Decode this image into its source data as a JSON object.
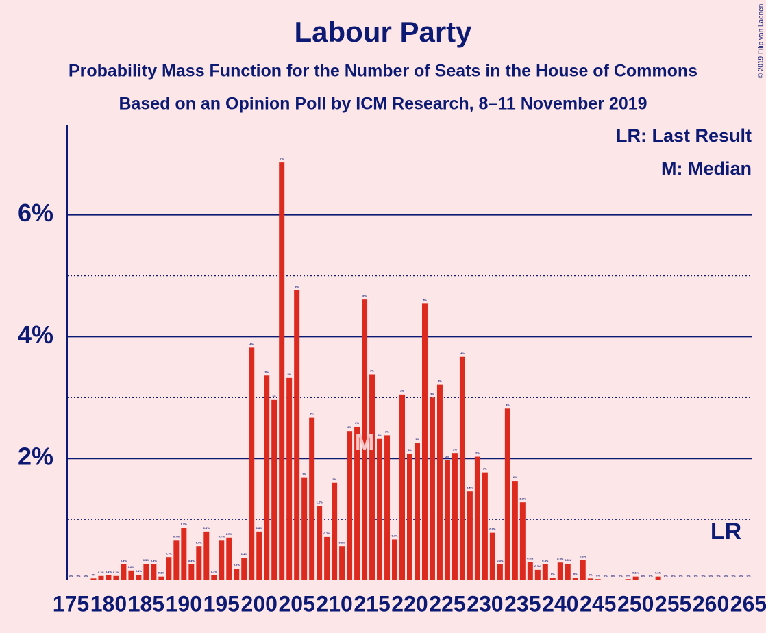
{
  "chart_data": {
    "type": "bar",
    "title": "Labour Party",
    "subtitles": [
      "Probability Mass Function for the Number of Seats in the House of Commons",
      "Based on an Opinion Poll by ICM Research, 8–11 November 2019"
    ],
    "copyright": "© 2019 Filip van Laenen",
    "legend": [
      "LR: Last Result",
      "M: Median"
    ],
    "median_label": "M",
    "median": 214,
    "last_result_label": "LR",
    "last_result": 262,
    "color": "#dd2a1f",
    "x": [
      175,
      176,
      177,
      178,
      179,
      180,
      181,
      182,
      183,
      184,
      185,
      186,
      187,
      188,
      189,
      190,
      191,
      192,
      193,
      194,
      195,
      196,
      197,
      198,
      199,
      200,
      201,
      202,
      203,
      204,
      205,
      206,
      207,
      208,
      209,
      210,
      211,
      212,
      213,
      214,
      215,
      216,
      217,
      218,
      219,
      220,
      221,
      222,
      223,
      224,
      225,
      226,
      227,
      228,
      229,
      230,
      231,
      232,
      233,
      234,
      235,
      236,
      237,
      238,
      239,
      240,
      241,
      242,
      243,
      244,
      245,
      246,
      247,
      248,
      249,
      250,
      251,
      252,
      253,
      254,
      255,
      256,
      257,
      258,
      259,
      260,
      261,
      262,
      263,
      264,
      265
    ],
    "values": [
      0.01,
      0.01,
      0.01,
      0.03,
      0.07,
      0.08,
      0.07,
      0.26,
      0.16,
      0.09,
      0.27,
      0.26,
      0.06,
      0.38,
      0.66,
      0.86,
      0.26,
      0.56,
      0.8,
      0.08,
      0.66,
      0.7,
      0.19,
      0.37,
      3.82,
      0.8,
      3.36,
      2.96,
      6.86,
      3.32,
      4.76,
      1.68,
      2.67,
      1.22,
      0.71,
      1.6,
      0.56,
      2.45,
      2.52,
      4.61,
      3.38,
      2.32,
      2.38,
      0.67,
      3.05,
      2.07,
      2.25,
      4.54,
      3.0,
      3.21,
      1.97,
      2.09,
      3.67,
      1.46,
      2.03,
      1.77,
      0.78,
      0.26,
      2.82,
      1.63,
      1.28,
      0.3,
      0.17,
      0.26,
      0.04,
      0.29,
      0.27,
      0.04,
      0.33,
      0.03,
      0.02,
      0.01,
      0.01,
      0.01,
      0.02,
      0.06,
      0.01,
      0.01,
      0.06,
      0.01,
      0.01,
      0.01,
      0.01,
      0.01,
      0.01,
      0.01,
      0.01,
      0.01,
      0.01,
      0.01,
      0.01
    ],
    "value_labels": [
      "0%",
      "0%",
      "0%",
      "0%",
      "0.1%",
      "0.1%",
      "0.1%",
      "0.3%",
      "0.2%",
      "0.1%",
      "0.3%",
      "0.3%",
      "0.1%",
      "0.4%",
      "0.7%",
      "0.9%",
      "0.3%",
      "0.6%",
      "0.8%",
      "0.1%",
      "0.7%",
      "0.7%",
      "0.2%",
      "0.4%",
      "4%",
      "0.8%",
      "3%",
      "3%",
      "7%",
      "3%",
      "5%",
      "2%",
      "3%",
      "1.2%",
      "0.7%",
      "2%",
      "0.6%",
      "2%",
      "3%",
      "5%",
      "3%",
      "2%",
      "2%",
      "0.7%",
      "3%",
      "2%",
      "2%",
      "5%",
      "3%",
      "3%",
      "2%",
      "2%",
      "4%",
      "1.5%",
      "2%",
      "2%",
      "0.8%",
      "0.3%",
      "3%",
      "2%",
      "1.3%",
      "0.3%",
      "0.2%",
      "0.3%",
      "0%",
      "0.3%",
      "0.3%",
      "0%",
      "0.3%",
      "0%",
      "0%",
      "0%",
      "0%",
      "0%",
      "0%",
      "0.1%",
      "0%",
      "0%",
      "0.1%",
      "0%",
      "0%",
      "0%",
      "0%",
      "0%",
      "0%",
      "0%",
      "0%",
      "0%",
      "0%",
      "0%",
      "0%"
    ],
    "xlim": [
      174.5,
      265.5
    ],
    "xticks": [
      175,
      180,
      185,
      190,
      195,
      200,
      205,
      210,
      215,
      220,
      225,
      230,
      235,
      240,
      245,
      250,
      255,
      260,
      265
    ],
    "ylim": [
      0,
      7.48
    ],
    "yticks": [
      {
        "value": 2,
        "label": "2%"
      },
      {
        "value": 4,
        "label": "4%"
      },
      {
        "value": 6,
        "label": "6%"
      }
    ],
    "minor_yticks": [
      1,
      3,
      5
    ],
    "grid": true
  }
}
